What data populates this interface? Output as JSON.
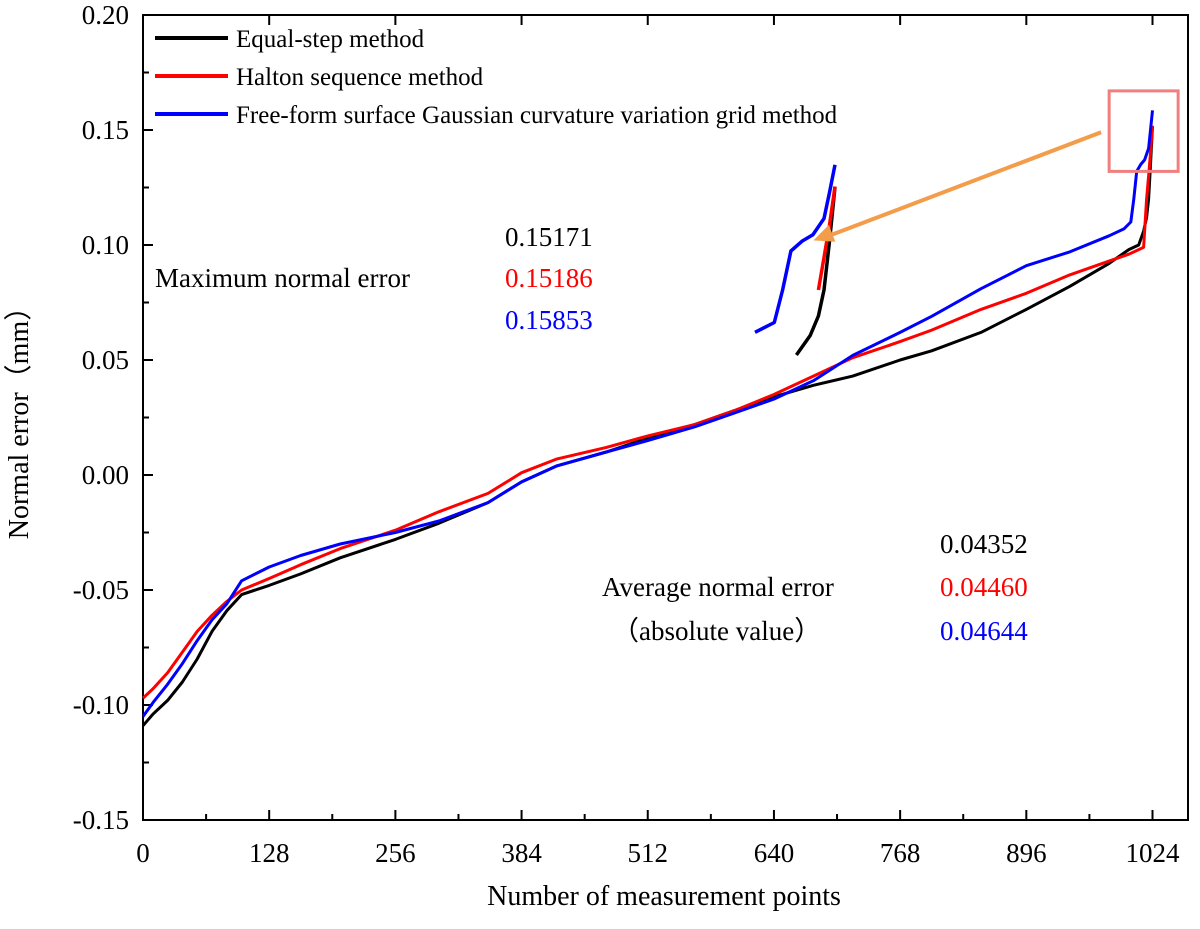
{
  "chart_data": {
    "type": "line",
    "xlabel": "Number of measurement points",
    "ylabel": "Normal error（mm）",
    "xlim": [
      0,
      1060
    ],
    "ylim": [
      -0.15,
      0.2
    ],
    "x_ticks": [
      0,
      128,
      256,
      384,
      512,
      640,
      768,
      896,
      1024
    ],
    "x_tick_labels": [
      "0",
      "128",
      "256",
      "384",
      "512",
      "640",
      "768",
      "896",
      "1024"
    ],
    "y_ticks": [
      -0.15,
      -0.1,
      -0.05,
      0.0,
      0.05,
      0.1,
      0.15,
      0.2
    ],
    "y_tick_labels": [
      "-0.15",
      "-0.10",
      "-0.05",
      "0.00",
      "0.05",
      "0.10",
      "0.15",
      "0.20"
    ],
    "grid": false,
    "legend_position": "top-left",
    "series": [
      {
        "name": "Equal-step method",
        "color": "#000000",
        "x": [
          0,
          10,
          25,
          40,
          55,
          70,
          85,
          100,
          128,
          160,
          200,
          256,
          300,
          350,
          384,
          420,
          470,
          512,
          560,
          600,
          640,
          680,
          720,
          768,
          800,
          850,
          896,
          940,
          980,
          1000,
          1005,
          1010,
          1015,
          1018,
          1020,
          1022,
          1024
        ],
        "y": [
          -0.109,
          -0.104,
          -0.098,
          -0.09,
          -0.08,
          -0.068,
          -0.059,
          -0.052,
          -0.048,
          -0.043,
          -0.036,
          -0.028,
          -0.021,
          -0.012,
          -0.003,
          0.004,
          0.01,
          0.016,
          0.022,
          0.028,
          0.034,
          0.039,
          0.043,
          0.05,
          0.054,
          0.062,
          0.072,
          0.082,
          0.092,
          0.098,
          0.099,
          0.1,
          0.106,
          0.112,
          0.12,
          0.135,
          0.15171
        ]
      },
      {
        "name": "Halton sequence method",
        "color": "#ff0000",
        "x": [
          0,
          10,
          25,
          40,
          55,
          70,
          85,
          100,
          128,
          160,
          200,
          256,
          300,
          350,
          384,
          420,
          470,
          512,
          560,
          600,
          640,
          680,
          720,
          768,
          800,
          850,
          896,
          940,
          980,
          1000,
          1010,
          1015,
          1018,
          1020,
          1022,
          1024
        ],
        "y": [
          -0.097,
          -0.093,
          -0.086,
          -0.077,
          -0.068,
          -0.061,
          -0.055,
          -0.05,
          -0.045,
          -0.039,
          -0.032,
          -0.024,
          -0.016,
          -0.008,
          0.001,
          0.007,
          0.012,
          0.017,
          0.022,
          0.028,
          0.035,
          0.043,
          0.051,
          0.058,
          0.063,
          0.072,
          0.079,
          0.087,
          0.093,
          0.096,
          0.098,
          0.099,
          0.12,
          0.13,
          0.14,
          0.15186
        ]
      },
      {
        "name": "Free-form surface Gaussian curvature variation grid method",
        "color": "#0000ff",
        "x": [
          0,
          10,
          25,
          40,
          55,
          70,
          85,
          100,
          128,
          160,
          200,
          256,
          300,
          350,
          384,
          420,
          470,
          512,
          560,
          600,
          640,
          680,
          720,
          768,
          800,
          850,
          896,
          940,
          980,
          995,
          1002,
          1005,
          1008,
          1012,
          1016,
          1020,
          1022,
          1024
        ],
        "y": [
          -0.105,
          -0.099,
          -0.091,
          -0.082,
          -0.072,
          -0.063,
          -0.056,
          -0.046,
          -0.04,
          -0.035,
          -0.03,
          -0.025,
          -0.02,
          -0.012,
          -0.003,
          0.004,
          0.01,
          0.015,
          0.021,
          0.027,
          0.033,
          0.041,
          0.052,
          0.062,
          0.069,
          0.081,
          0.091,
          0.097,
          0.104,
          0.107,
          0.11,
          0.12,
          0.132,
          0.135,
          0.137,
          0.142,
          0.15,
          0.15853
        ]
      }
    ],
    "annotations": {
      "max_label": "Maximum normal error",
      "max_values": [
        "0.15171",
        "0.15186",
        "0.15853"
      ],
      "avg_label": "Average normal error",
      "avg_label2": "（absolute value）",
      "avg_values": [
        "0.04352",
        "0.04460",
        "0.04644"
      ]
    },
    "zoom_box_color": "#f08080",
    "arrow_color": "#f39c4a"
  }
}
